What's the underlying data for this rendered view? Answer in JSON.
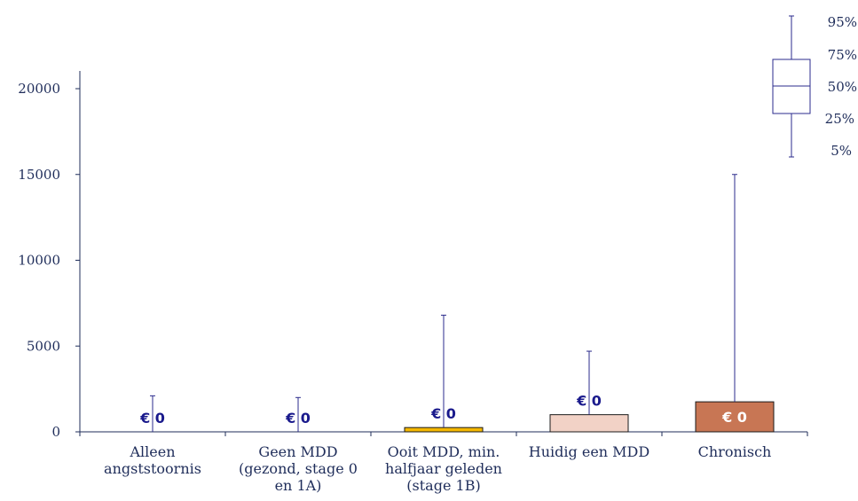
{
  "chart_data": {
    "type": "bar",
    "title": "",
    "xlabel": "",
    "ylabel": "",
    "ylim": [
      0,
      20000
    ],
    "yticks": [
      0,
      5000,
      10000,
      15000,
      20000
    ],
    "grid": false,
    "categories": [
      [
        "Alleen",
        "angststoornis"
      ],
      [
        "Geen MDD",
        "(gezond, stage 0",
        "en 1A)"
      ],
      [
        "Ooit MDD, min.",
        "halfjaar geleden",
        "(stage 1B)"
      ],
      [
        "Huidig een MDD"
      ],
      [
        "Chronisch"
      ]
    ],
    "values": [
      0,
      0,
      250,
      1000,
      1750
    ],
    "whisker_top": [
      2100,
      2000,
      6800,
      4700,
      15000
    ],
    "bar_colors": [
      "#ffffff",
      "#ffffff",
      "#f5b800",
      "#f2d2c6",
      "#c87654"
    ],
    "data_labels": [
      "€ 0",
      "€ 0",
      "€ 0",
      "€ 0",
      "€ 0"
    ],
    "data_label_colors": [
      "#1a1a8c",
      "#1a1a8c",
      "#1a1a8c",
      "#1a1a8c",
      "#ffffff"
    ],
    "legend": {
      "position": "top-right",
      "labels": [
        "95%",
        "75%",
        "50%",
        "25%",
        "5%"
      ]
    },
    "axis_color": "#1f2d5a",
    "whisker_color": "#2b2b8c"
  }
}
